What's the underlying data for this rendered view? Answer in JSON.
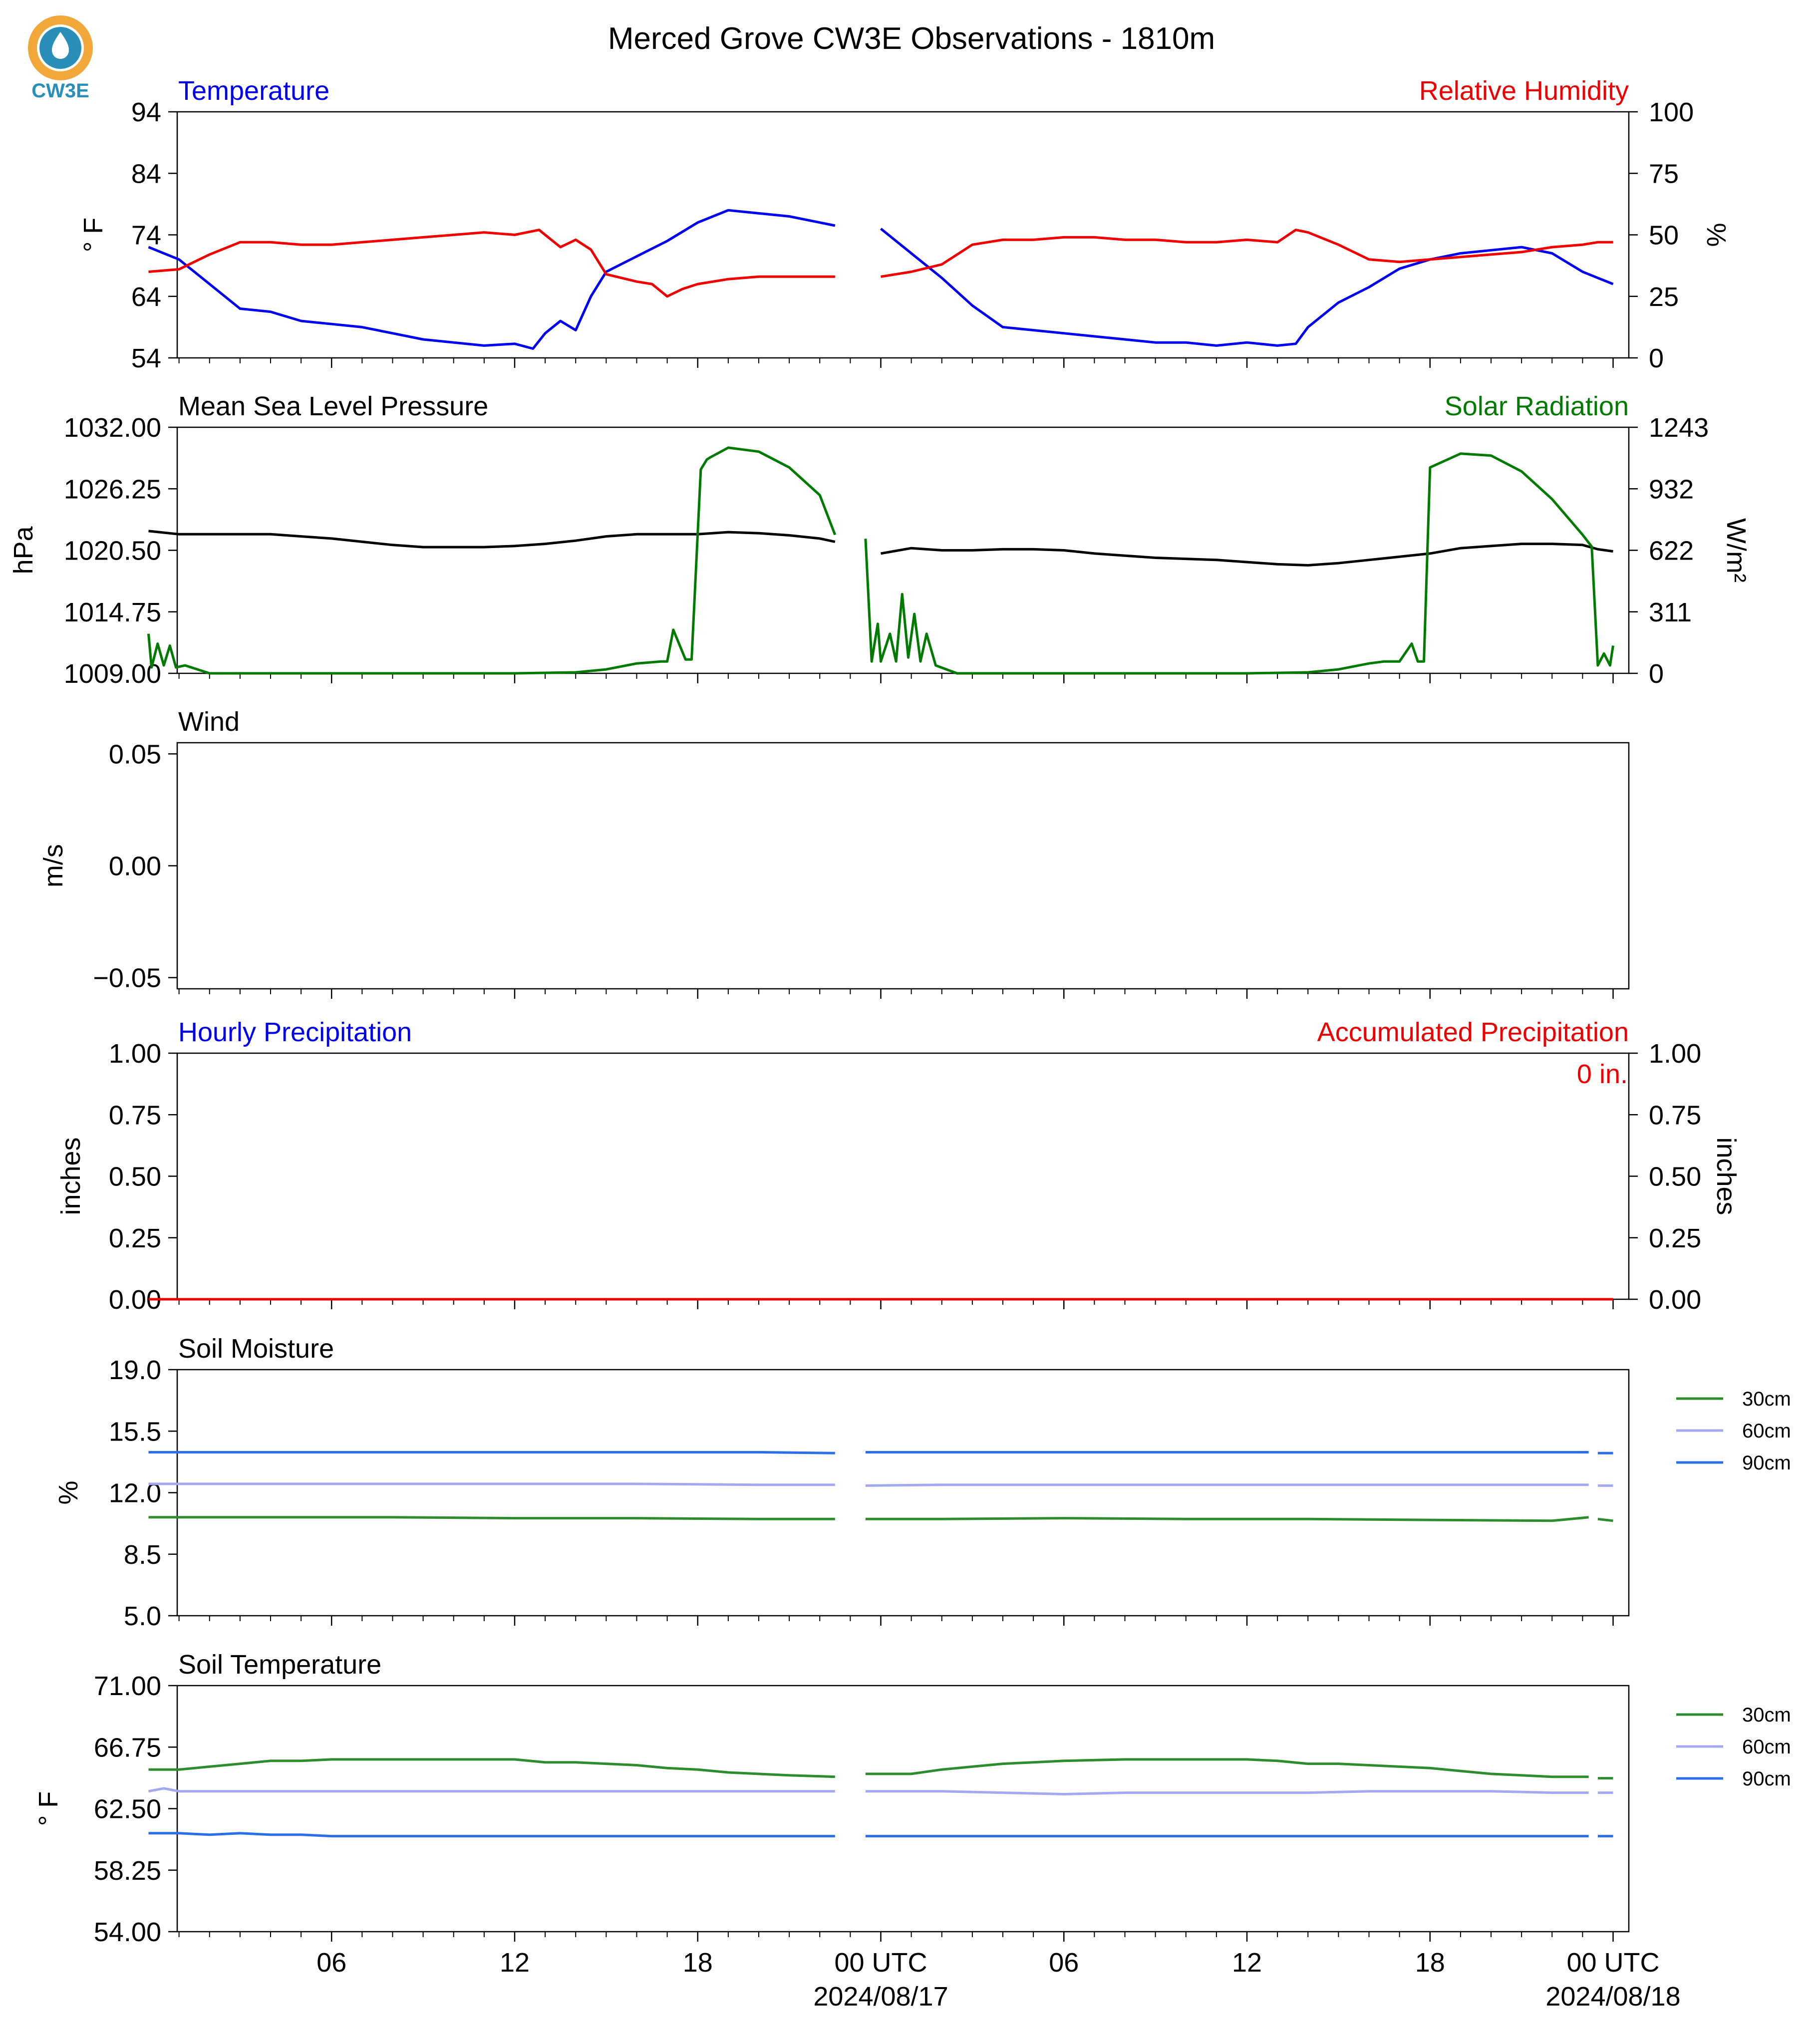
{
  "logo": {
    "text": "CW3E",
    "ring_color": "#f2a73b",
    "water_color": "#2a8fb8",
    "text_color": "#2a8fb8"
  },
  "title": "Merced Grove CW3E Observations - 1810m",
  "x_axis": {
    "tick_labels": [
      "06",
      "12",
      "18",
      "00 UTC",
      "06",
      "12",
      "18",
      "00 UTC"
    ],
    "date_labels": [
      "2024/08/17",
      "2024/08/18"
    ]
  },
  "colors": {
    "blue": "#0000ee",
    "red": "#ee0000",
    "green": "#007a00",
    "black": "#000000",
    "soil30": "#2e8b2e",
    "soil60": "#a3a8ef",
    "soil90": "#2a6ee8"
  },
  "chart_data": [
    {
      "type": "line",
      "title_left": "Temperature",
      "title_right": "Relative Humidity",
      "ylabel_left": "° F",
      "ylabel_right": "%",
      "ylim_left": [
        54,
        94
      ],
      "ylim_right": [
        0,
        100
      ],
      "yticks_left": [
        "54",
        "64",
        "74",
        "84",
        "94"
      ],
      "yticks_right": [
        "0",
        "25",
        "50",
        "75",
        "100"
      ],
      "series": [
        {
          "name": "Temperature",
          "axis": "left",
          "color": "#0000ee",
          "x": [
            0,
            1,
            2,
            3,
            4,
            5,
            6,
            7,
            8,
            9,
            10,
            11,
            12,
            12.6,
            13,
            13.5,
            14,
            14.5,
            15,
            16,
            17,
            18,
            19,
            20,
            21,
            22,
            22.5,
            23.5,
            24,
            25,
            26,
            27,
            28,
            29,
            30,
            31,
            32,
            33,
            34,
            35,
            36,
            37,
            37.6,
            38,
            39,
            40,
            41,
            42,
            43,
            44,
            45,
            46,
            47,
            47.5,
            48
          ],
          "y": [
            72,
            70,
            66,
            62,
            61.5,
            60,
            59.5,
            59,
            58,
            57,
            56.5,
            56,
            56.3,
            55.5,
            58,
            60,
            58.5,
            64,
            68,
            70.5,
            73,
            76,
            78,
            77.5,
            77,
            76,
            75.5,
            null,
            75,
            71,
            67,
            62.5,
            59,
            58.5,
            58,
            57.5,
            57,
            56.5,
            56.5,
            56,
            56.5,
            56,
            56.3,
            59,
            63,
            65.5,
            68.5,
            70,
            71,
            71.5,
            72,
            71,
            68,
            67,
            66
          ]
        },
        {
          "name": "Relative Humidity",
          "axis": "right",
          "color": "#ee0000",
          "x": [
            0,
            1,
            2,
            3,
            4,
            5,
            6,
            7,
            8,
            9,
            10,
            11,
            12,
            12.8,
            13,
            13.5,
            14,
            14.5,
            15,
            16,
            16.5,
            17,
            17.5,
            18,
            19,
            20,
            21,
            22,
            22.5,
            23.5,
            24,
            25,
            26,
            27,
            28,
            29,
            30,
            31,
            32,
            33,
            34,
            35,
            36,
            37,
            37.6,
            38,
            39,
            40,
            41,
            42,
            43,
            44,
            45,
            46,
            47,
            47.5,
            48
          ],
          "y": [
            35,
            36,
            42,
            47,
            47,
            46,
            46,
            47,
            48,
            49,
            50,
            51,
            50,
            52,
            50,
            45,
            48,
            44,
            34,
            31,
            30,
            25,
            28,
            30,
            32,
            33,
            33,
            33,
            33,
            null,
            33,
            35,
            38,
            46,
            48,
            48,
            49,
            49,
            48,
            48,
            47,
            47,
            48,
            47,
            52,
            51,
            46,
            40,
            39,
            40,
            41,
            42,
            43,
            45,
            46,
            47,
            47
          ]
        }
      ]
    },
    {
      "type": "line",
      "title_left": "Mean Sea Level Pressure",
      "title_right": "Solar Radiation",
      "ylabel_left": "hPa",
      "ylabel_right": "W/m²",
      "ylim_left": [
        1009,
        1032
      ],
      "ylim_right": [
        0,
        1243
      ],
      "yticks_left": [
        "1009.00",
        "1014.75",
        "1020.50",
        "1026.25",
        "1032.00"
      ],
      "yticks_right": [
        "0",
        "311",
        "622",
        "932",
        "1243"
      ],
      "series": [
        {
          "name": "Mean Sea Level Pressure",
          "axis": "left",
          "color": "#000000",
          "x": [
            0,
            1,
            2,
            3,
            4,
            5,
            6,
            7,
            8,
            9,
            10,
            11,
            12,
            13,
            14,
            15,
            16,
            17,
            18,
            19,
            20,
            21,
            22,
            22.5,
            23.5,
            24,
            25,
            26,
            27,
            28,
            29,
            30,
            31,
            32,
            33,
            34,
            35,
            36,
            37,
            38,
            39,
            40,
            41,
            42,
            43,
            44,
            45,
            46,
            47,
            47.5,
            48
          ],
          "y": [
            1022.3,
            1022,
            1022,
            1022,
            1022,
            1021.8,
            1021.6,
            1021.3,
            1021,
            1020.8,
            1020.8,
            1020.8,
            1020.9,
            1021.1,
            1021.4,
            1021.8,
            1022,
            1022,
            1022,
            1022.2,
            1022.1,
            1021.9,
            1021.6,
            1021.3,
            null,
            1020.2,
            1020.7,
            1020.5,
            1020.5,
            1020.6,
            1020.6,
            1020.5,
            1020.2,
            1020,
            1019.8,
            1019.7,
            1019.6,
            1019.4,
            1019.2,
            1019.1,
            1019.3,
            1019.6,
            1019.9,
            1020.2,
            1020.7,
            1020.9,
            1021.1,
            1021.1,
            1021,
            1020.6,
            1020.4
          ]
        },
        {
          "name": "Solar Radiation",
          "axis": "right",
          "color": "#007a00",
          "x": [
            0,
            0.1,
            0.3,
            0.5,
            0.7,
            0.9,
            1.2,
            2,
            4,
            8,
            12,
            14,
            15,
            16,
            16.8,
            17,
            17.2,
            17.6,
            17.8,
            18.1,
            18.3,
            18.4,
            19,
            20,
            21,
            22,
            22.5,
            null,
            23.5,
            23.7,
            23.9,
            24,
            24.3,
            24.5,
            24.7,
            24.9,
            25.1,
            25.3,
            25.5,
            25.8,
            26.5,
            28,
            32,
            36,
            38,
            39,
            40,
            40.5,
            41,
            41.4,
            41.6,
            41.8,
            42,
            43,
            44,
            45,
            46,
            47,
            47.3,
            47.5,
            47.7,
            47.9,
            48
          ],
          "y": [
            200,
            30,
            150,
            40,
            140,
            30,
            40,
            0,
            0,
            0,
            0,
            5,
            20,
            50,
            60,
            60,
            220,
            70,
            70,
            1030,
            1080,
            1090,
            1140,
            1120,
            1040,
            900,
            700,
            null,
            680,
            60,
            250,
            60,
            200,
            60,
            400,
            80,
            300,
            60,
            200,
            40,
            0,
            0,
            0,
            0,
            5,
            20,
            50,
            60,
            60,
            150,
            60,
            60,
            1040,
            1110,
            1100,
            1020,
            880,
            700,
            640,
            40,
            100,
            40,
            140
          ]
        }
      ]
    },
    {
      "type": "line",
      "title_left": "Wind",
      "ylabel_left": "m/s",
      "ylim_left": [
        -0.055,
        0.055
      ],
      "yticks_left": [
        "−0.05",
        "0.00",
        "0.05"
      ],
      "series": []
    },
    {
      "type": "line",
      "title_left": "Hourly Precipitation",
      "title_right": "Accumulated Precipitation",
      "ylabel_left": "inches",
      "ylabel_right": "inches",
      "ylim_left": [
        0,
        1
      ],
      "ylim_right": [
        0,
        1
      ],
      "yticks_left": [
        "0.00",
        "0.25",
        "0.50",
        "0.75",
        "1.00"
      ],
      "yticks_right": [
        "0.00",
        "0.25",
        "0.50",
        "0.75",
        "1.00"
      ],
      "annotation": "0 in.",
      "series": [
        {
          "name": "Hourly Precipitation",
          "axis": "left",
          "color": "#0000ee",
          "x": [
            0,
            48
          ],
          "y": [
            0,
            0
          ]
        },
        {
          "name": "Accumulated Precipitation",
          "axis": "right",
          "color": "#ee0000",
          "x": [
            0,
            48
          ],
          "y": [
            0,
            0
          ]
        }
      ]
    },
    {
      "type": "line",
      "title_left": "Soil Moisture",
      "ylabel_left": "%",
      "ylim_left": [
        5,
        19
      ],
      "yticks_left": [
        "5.0",
        "8.5",
        "12.0",
        "15.5",
        "19.0"
      ],
      "legend": [
        "30cm",
        "60cm",
        "90cm"
      ],
      "series": [
        {
          "name": "30cm",
          "color": "#2e8b2e",
          "x": [
            0,
            4,
            8,
            12,
            16,
            20,
            22.5,
            null,
            23.5,
            26,
            30,
            34,
            38,
            42,
            46,
            47.2,
            null,
            47.5,
            48
          ],
          "y": [
            10.6,
            10.6,
            10.6,
            10.55,
            10.55,
            10.5,
            10.5,
            null,
            10.5,
            10.5,
            10.55,
            10.5,
            10.5,
            10.45,
            10.4,
            10.6,
            null,
            10.5,
            10.4
          ]
        },
        {
          "name": "60cm",
          "color": "#a3a8ef",
          "x": [
            0,
            4,
            8,
            12,
            16,
            20,
            22.5,
            null,
            23.5,
            26,
            30,
            34,
            38,
            42,
            46,
            47.2,
            null,
            47.5,
            48
          ],
          "y": [
            12.5,
            12.5,
            12.5,
            12.5,
            12.5,
            12.45,
            12.45,
            null,
            12.4,
            12.45,
            12.45,
            12.45,
            12.45,
            12.45,
            12.45,
            12.45,
            null,
            12.4,
            12.4
          ]
        },
        {
          "name": "90cm",
          "color": "#2a6ee8",
          "x": [
            0,
            4,
            8,
            12,
            16,
            20,
            22.5,
            null,
            23.5,
            26,
            30,
            34,
            38,
            42,
            46,
            47.2,
            null,
            47.5,
            48
          ],
          "y": [
            14.3,
            14.3,
            14.3,
            14.3,
            14.3,
            14.3,
            14.25,
            null,
            14.3,
            14.3,
            14.3,
            14.3,
            14.3,
            14.3,
            14.3,
            14.3,
            null,
            14.25,
            14.25
          ]
        }
      ]
    },
    {
      "type": "line",
      "title_left": "Soil Temperature",
      "ylabel_left": "° F",
      "ylim_left": [
        54,
        71
      ],
      "yticks_left": [
        "54.00",
        "58.25",
        "62.50",
        "66.75",
        "71.00"
      ],
      "legend": [
        "30cm",
        "60cm",
        "90cm"
      ],
      "series": [
        {
          "name": "30cm",
          "color": "#2e8b2e",
          "x": [
            0,
            1,
            2,
            3,
            4,
            5,
            6,
            8,
            10,
            11,
            12,
            13,
            14,
            15,
            16,
            17,
            18,
            19,
            20,
            21,
            22.5,
            null,
            23.5,
            24,
            25,
            26,
            27,
            28,
            29,
            30,
            32,
            34,
            35,
            36,
            37,
            38,
            39,
            40,
            41,
            42,
            43,
            44,
            45,
            46,
            47.2,
            null,
            47.5,
            48
          ],
          "y": [
            65.2,
            65.2,
            65.4,
            65.6,
            65.8,
            65.8,
            65.9,
            65.9,
            65.9,
            65.9,
            65.9,
            65.7,
            65.7,
            65.6,
            65.5,
            65.3,
            65.2,
            65,
            64.9,
            64.8,
            64.7,
            null,
            64.9,
            64.9,
            64.9,
            65.2,
            65.4,
            65.6,
            65.7,
            65.8,
            65.9,
            65.9,
            65.9,
            65.9,
            65.8,
            65.6,
            65.6,
            65.5,
            65.4,
            65.3,
            65.1,
            64.9,
            64.8,
            64.7,
            64.7,
            null,
            64.6,
            64.6
          ]
        },
        {
          "name": "60cm",
          "color": "#a3a8ef",
          "x": [
            0,
            0.5,
            1,
            4,
            8,
            12,
            16,
            20,
            22.5,
            null,
            23.5,
            26,
            28,
            30,
            32,
            34,
            36,
            38,
            40,
            44,
            46,
            47.2,
            null,
            47.5,
            48
          ],
          "y": [
            63.7,
            63.9,
            63.7,
            63.7,
            63.7,
            63.7,
            63.7,
            63.7,
            63.7,
            null,
            63.7,
            63.7,
            63.6,
            63.5,
            63.6,
            63.6,
            63.6,
            63.6,
            63.7,
            63.7,
            63.6,
            63.6,
            null,
            63.6,
            63.6
          ]
        },
        {
          "name": "90cm",
          "color": "#2a6ee8",
          "x": [
            0,
            1,
            2,
            3,
            4,
            5,
            6,
            7,
            8,
            12,
            16,
            20,
            22.5,
            null,
            23.5,
            30,
            36,
            42,
            47.2,
            null,
            47.5,
            48
          ],
          "y": [
            60.8,
            60.8,
            60.7,
            60.8,
            60.7,
            60.7,
            60.6,
            60.6,
            60.6,
            60.6,
            60.6,
            60.6,
            60.6,
            null,
            60.6,
            60.6,
            60.6,
            60.6,
            60.6,
            null,
            60.6,
            60.6
          ]
        }
      ]
    }
  ]
}
